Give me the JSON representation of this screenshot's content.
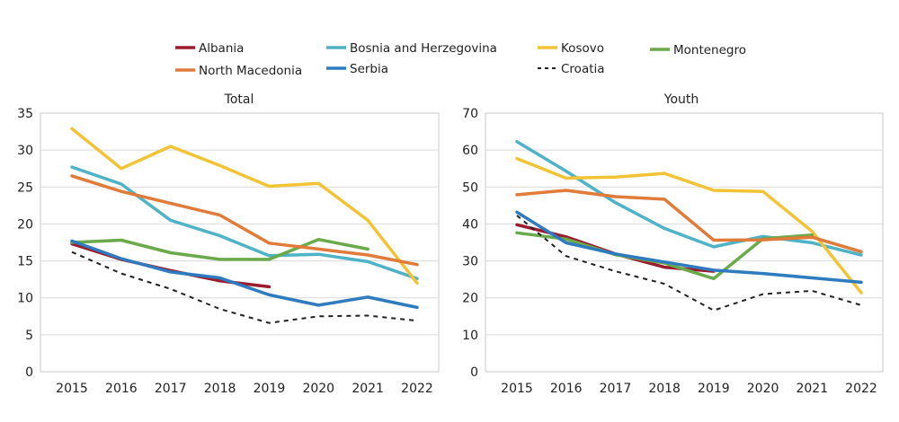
{
  "legend": {
    "items": [
      {
        "name": "Albania",
        "color": "#9c1c2e",
        "dashed": false
      },
      {
        "name": "Bosnia and Herzegovina",
        "color": "#4fb3c8",
        "dashed": false
      },
      {
        "name": "Kosovo",
        "color": "#f2c335",
        "dashed": false
      },
      {
        "name": "Montenegro",
        "color": "#6aaa4b",
        "dashed": false
      },
      {
        "name": "North Macedonia",
        "color": "#e07b39",
        "dashed": false
      },
      {
        "name": "Serbia",
        "color": "#2e7bbf",
        "dashed": false
      },
      {
        "name": "Croatia",
        "color": "#222222",
        "dashed": true
      }
    ]
  },
  "chart_data": [
    {
      "type": "line",
      "title": "Total",
      "x": [
        "2015",
        "2016",
        "2017",
        "2018",
        "2019",
        "2020",
        "2021",
        "2022"
      ],
      "ylim": [
        0,
        35
      ],
      "yticks": [
        0,
        5,
        10,
        15,
        20,
        25,
        30,
        35
      ],
      "grid": true,
      "series": [
        {
          "name": "Albania",
          "values": [
            17.3,
            15.2,
            13.7,
            12.3,
            11.5,
            null,
            null,
            null
          ]
        },
        {
          "name": "Bosnia and Herzegovina",
          "values": [
            27.7,
            25.4,
            20.5,
            18.4,
            15.7,
            15.9,
            14.9,
            12.6
          ]
        },
        {
          "name": "Kosovo",
          "values": [
            32.9,
            27.5,
            30.5,
            27.9,
            25.1,
            25.5,
            20.5,
            12.0
          ]
        },
        {
          "name": "Montenegro",
          "values": [
            17.5,
            17.8,
            16.1,
            15.2,
            15.2,
            17.9,
            16.6,
            null
          ]
        },
        {
          "name": "North Macedonia",
          "values": [
            26.5,
            24.4,
            22.8,
            21.2,
            17.4,
            16.6,
            15.8,
            14.5
          ]
        },
        {
          "name": "Serbia",
          "values": [
            17.7,
            15.3,
            13.5,
            12.7,
            10.4,
            9.0,
            10.1,
            8.7
          ]
        },
        {
          "name": "Croatia",
          "values": [
            16.2,
            13.3,
            11.2,
            8.5,
            6.6,
            7.5,
            7.6,
            6.9
          ]
        }
      ]
    },
    {
      "type": "line",
      "title": "Youth",
      "x": [
        "2015",
        "2016",
        "2017",
        "2018",
        "2019",
        "2020",
        "2021",
        "2022"
      ],
      "ylim": [
        0,
        70
      ],
      "yticks": [
        0,
        10,
        20,
        30,
        40,
        50,
        60,
        70
      ],
      "grid": true,
      "series": [
        {
          "name": "Albania",
          "values": [
            39.8,
            36.5,
            31.9,
            28.3,
            27.2,
            null,
            null,
            null
          ]
        },
        {
          "name": "Bosnia and Herzegovina",
          "values": [
            62.3,
            54.3,
            45.8,
            38.8,
            33.8,
            36.6,
            34.9,
            31.6
          ]
        },
        {
          "name": "Kosovo",
          "values": [
            57.7,
            52.4,
            52.7,
            53.7,
            49.1,
            48.8,
            38.0,
            21.4
          ]
        },
        {
          "name": "Montenegro",
          "values": [
            37.6,
            35.9,
            31.7,
            29.4,
            25.2,
            36.0,
            37.0,
            null
          ]
        },
        {
          "name": "North Macedonia",
          "values": [
            47.9,
            49.1,
            47.4,
            46.7,
            35.6,
            35.7,
            36.4,
            32.5
          ]
        },
        {
          "name": "Serbia",
          "values": [
            43.2,
            34.9,
            31.9,
            29.7,
            27.5,
            26.6,
            25.4,
            24.2
          ]
        },
        {
          "name": "Croatia",
          "values": [
            42.3,
            31.3,
            27.2,
            23.8,
            16.6,
            21.0,
            21.9,
            18.0
          ]
        }
      ]
    }
  ]
}
